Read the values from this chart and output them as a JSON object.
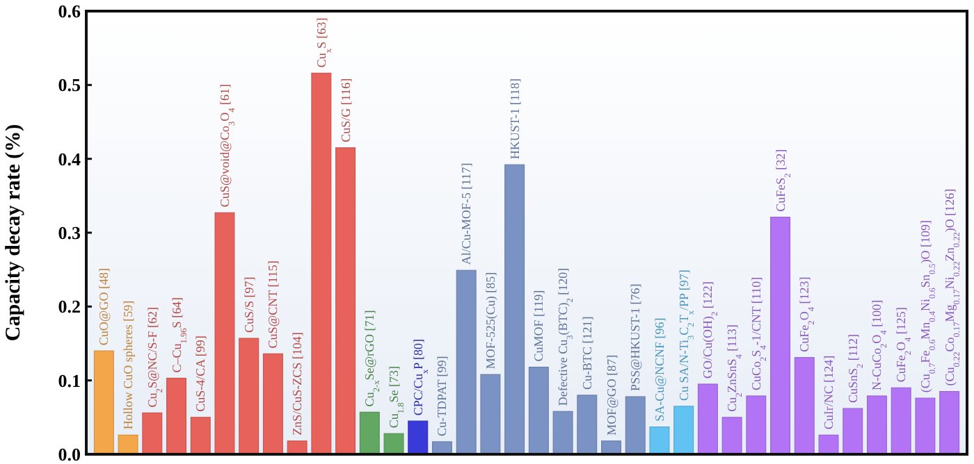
{
  "chart_data": {
    "type": "bar",
    "ylabel": "Capacity decay rate (%)",
    "categories": [
      "CuO@GO [48]",
      "Hollow CuO spheres [59]",
      "Cu$_{2}$S@NC/S-F [62]",
      "C–Cu$_{1.96}$S [64]",
      "CuS-4/CA [99]",
      "CuS@void@Co$_{3}$O$_{4}$ [61]",
      "CuS/S [97]",
      "CuS@CNT [115]",
      "ZnS/CuS-ZCS [104]",
      "Cu$_{x}$S [63]",
      "CuS/G [116]",
      "Cu$_{2-x}$Se@rGO [71]",
      "Cu$_{1.8}$Se [73]",
      "CPC/Cu$_{x}$P [80]",
      "Cu-TDPAT [99]",
      "Al/Cu-MOF-5 [117]",
      "MOF-525(Cu) [85]",
      "HKUST-1 [118]",
      "CuMOF [119]",
      "Defective Cu$_{3}$(BTC)$_{2}$ [120]",
      "Cu-BTC [121]",
      "MOF@GO [87]",
      "PSS@HKUST-1 [76]",
      "SA-Cu@NCNF [96]",
      "Cu SA/N-Ti$_{3}$C$_{2}$T$_{x}$/PP [97]",
      "GO/Cu(OH)$_{2}$ [122]",
      "Cu$_{2}$ZnSnS$_{4}$ [113]",
      "CuCo$_{2}$S$_{4}$-1/CNT [110]",
      "CuFeS$_{2}$ [32]",
      "CuFe$_{2}$O$_{4}$ [123]",
      "CuIr/NC [124]",
      "CuSnS$_{2}$ [112]",
      "N-CuCo$_{2}$O$_{4}$ [100]",
      "CuFe$_{2}$O$_{4}$ [125]",
      "(Cu$_{0.7}$Fe$_{0.6}$Mn$_{0.4}$Ni$_{0.6}$Sn$_{0.5}$)O [109]",
      "(Cu$_{0.22}$Co$_{0.17}$Mg$_{0.17}$Ni$_{0.22}$Zn$_{0.22}$)O [126]"
    ],
    "values": [
      0.14,
      0.026,
      0.056,
      0.103,
      0.05,
      0.327,
      0.157,
      0.136,
      0.018,
      0.516,
      0.415,
      0.057,
      0.028,
      0.045,
      0.017,
      0.249,
      0.108,
      0.392,
      0.118,
      0.058,
      0.08,
      0.018,
      0.078,
      0.037,
      0.065,
      0.095,
      0.05,
      0.079,
      0.321,
      0.131,
      0.026,
      0.062,
      0.079,
      0.09,
      0.076,
      0.085
    ],
    "colors": [
      "#f4a74a",
      "#f4a74a",
      "#e8625c",
      "#e8625c",
      "#e8625c",
      "#e8625c",
      "#e8625c",
      "#e8625c",
      "#e8625c",
      "#e8625c",
      "#e8625c",
      "#62a862",
      "#62a862",
      "#3a3ad8",
      "#7b93c4",
      "#7b93c4",
      "#7b93c4",
      "#7b93c4",
      "#7b93c4",
      "#7b93c4",
      "#7b93c4",
      "#7b93c4",
      "#7b93c4",
      "#62c2f2",
      "#62c2f2",
      "#b274f4",
      "#b274f4",
      "#b274f4",
      "#b274f4",
      "#b274f4",
      "#b274f4",
      "#b274f4",
      "#b274f4",
      "#b274f4",
      "#b274f4",
      "#b274f4"
    ],
    "ylim": [
      0,
      0.6
    ],
    "yticks": [
      {
        "value": 0,
        "label": "0.0"
      },
      {
        "value": 0.1,
        "label": "0.1"
      },
      {
        "value": 0.2,
        "label": "0.2"
      },
      {
        "value": 0.3,
        "label": "0.3"
      },
      {
        "value": 0.4,
        "label": "0.4"
      },
      {
        "value": 0.5,
        "label": "0.5"
      },
      {
        "value": 0.6,
        "label": "0.6"
      }
    ],
    "grid": false
  }
}
